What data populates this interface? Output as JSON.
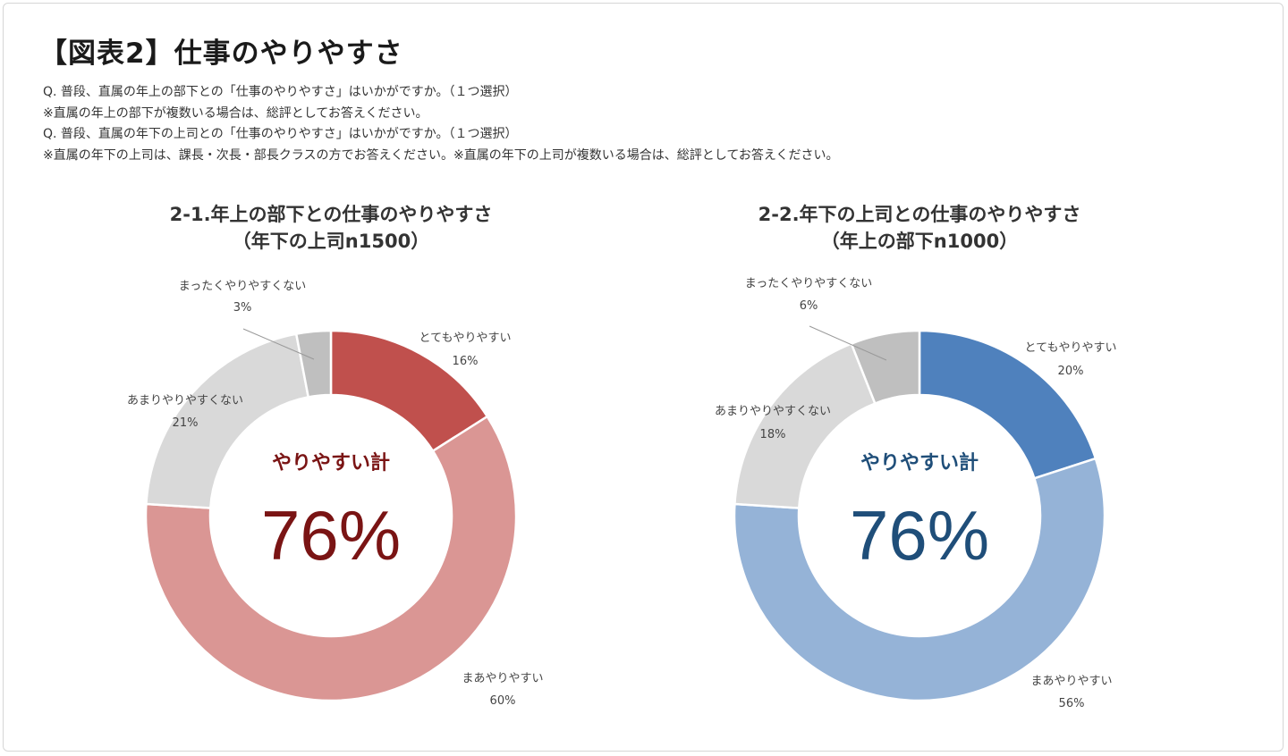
{
  "figure_title": "【図表2】仕事のやりやすさ",
  "notes": [
    "Q. 普段、直属の年上の部下との「仕事のやりやすさ」はいかがですか。（１つ選択）",
    "※直属の年上の部下が複数いる場合は、総評としてお答えください。",
    "Q. 普段、直属の年下の上司との「仕事のやりやすさ」はいかがですか。（１つ選択）",
    "※直属の年下の上司は、課長・次長・部長クラスの方でお答えください。※直属の年下の上司が複数いる場合は、総評としてお答えください。"
  ],
  "chart_data": [
    {
      "type": "pie",
      "donut": true,
      "title_lines": [
        "2-1.年上の部下との仕事のやりやすさ",
        "（年下の上司n1500）"
      ],
      "center_caption": "やりやすい計",
      "center_value": "76%",
      "accent_color": "#7a1414",
      "slices": [
        {
          "label": "とてもやりやすい",
          "value": 16,
          "display": "16%",
          "color": "#c0504d"
        },
        {
          "label": "まあやりやすい",
          "value": 60,
          "display": "60%",
          "color": "#da9694"
        },
        {
          "label": "あまりやりやすくない",
          "value": 21,
          "display": "21%",
          "color": "#d9d9d9"
        },
        {
          "label": "まったくやりやすくない",
          "value": 3,
          "display": "3%",
          "color": "#bfbfbf"
        }
      ]
    },
    {
      "type": "pie",
      "donut": true,
      "title_lines": [
        "2-2.年下の上司との仕事のやりやすさ",
        "（年上の部下n1000）"
      ],
      "center_caption": "やりやすい計",
      "center_value": "76%",
      "accent_color": "#1f4e79",
      "slices": [
        {
          "label": "とてもやりやすい",
          "value": 20,
          "display": "20%",
          "color": "#4f81bd"
        },
        {
          "label": "まあやりやすい",
          "value": 56,
          "display": "56%",
          "color": "#95b3d7"
        },
        {
          "label": "あまりやりやすくない",
          "value": 18,
          "display": "18%",
          "color": "#d9d9d9"
        },
        {
          "label": "まったくやりやすくない",
          "value": 6,
          "display": "6%",
          "color": "#bfbfbf"
        }
      ]
    }
  ]
}
